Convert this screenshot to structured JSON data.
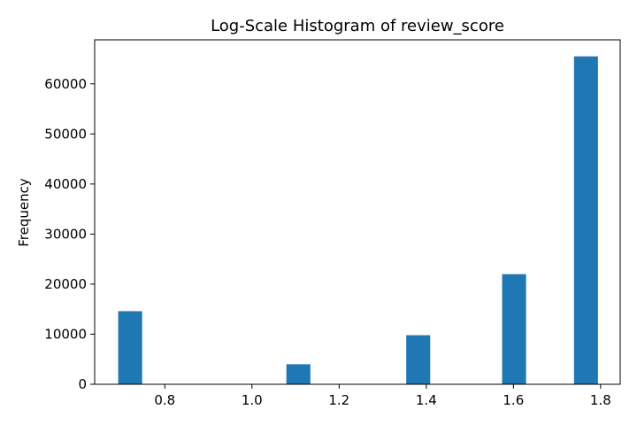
{
  "chart_data": {
    "type": "bar",
    "title": "Log-Scale Histogram of review_score",
    "xlabel": "",
    "ylabel": "Frequency",
    "xlim": [
      0.639,
      1.845
    ],
    "ylim": [
      0,
      68800
    ],
    "x_ticks": [
      0.8,
      1.0,
      1.2,
      1.4,
      1.6,
      1.8
    ],
    "x_tick_labels": [
      "0.8",
      "1.0",
      "1.2",
      "1.4",
      "1.6",
      "1.8"
    ],
    "y_ticks": [
      0,
      10000,
      20000,
      30000,
      40000,
      50000,
      60000
    ],
    "y_tick_labels": [
      "0",
      "10000",
      "20000",
      "30000",
      "40000",
      "50000",
      "60000"
    ],
    "grid": false,
    "bar_color": "#1f77b4",
    "bars": [
      {
        "x_start": 0.693,
        "x_end": 0.748,
        "value": 14600
      },
      {
        "x_start": 1.079,
        "x_end": 1.134,
        "value": 4000
      },
      {
        "x_start": 1.354,
        "x_end": 1.409,
        "value": 9800
      },
      {
        "x_start": 1.574,
        "x_end": 1.629,
        "value": 22000
      },
      {
        "x_start": 1.739,
        "x_end": 1.794,
        "value": 65500
      }
    ]
  }
}
